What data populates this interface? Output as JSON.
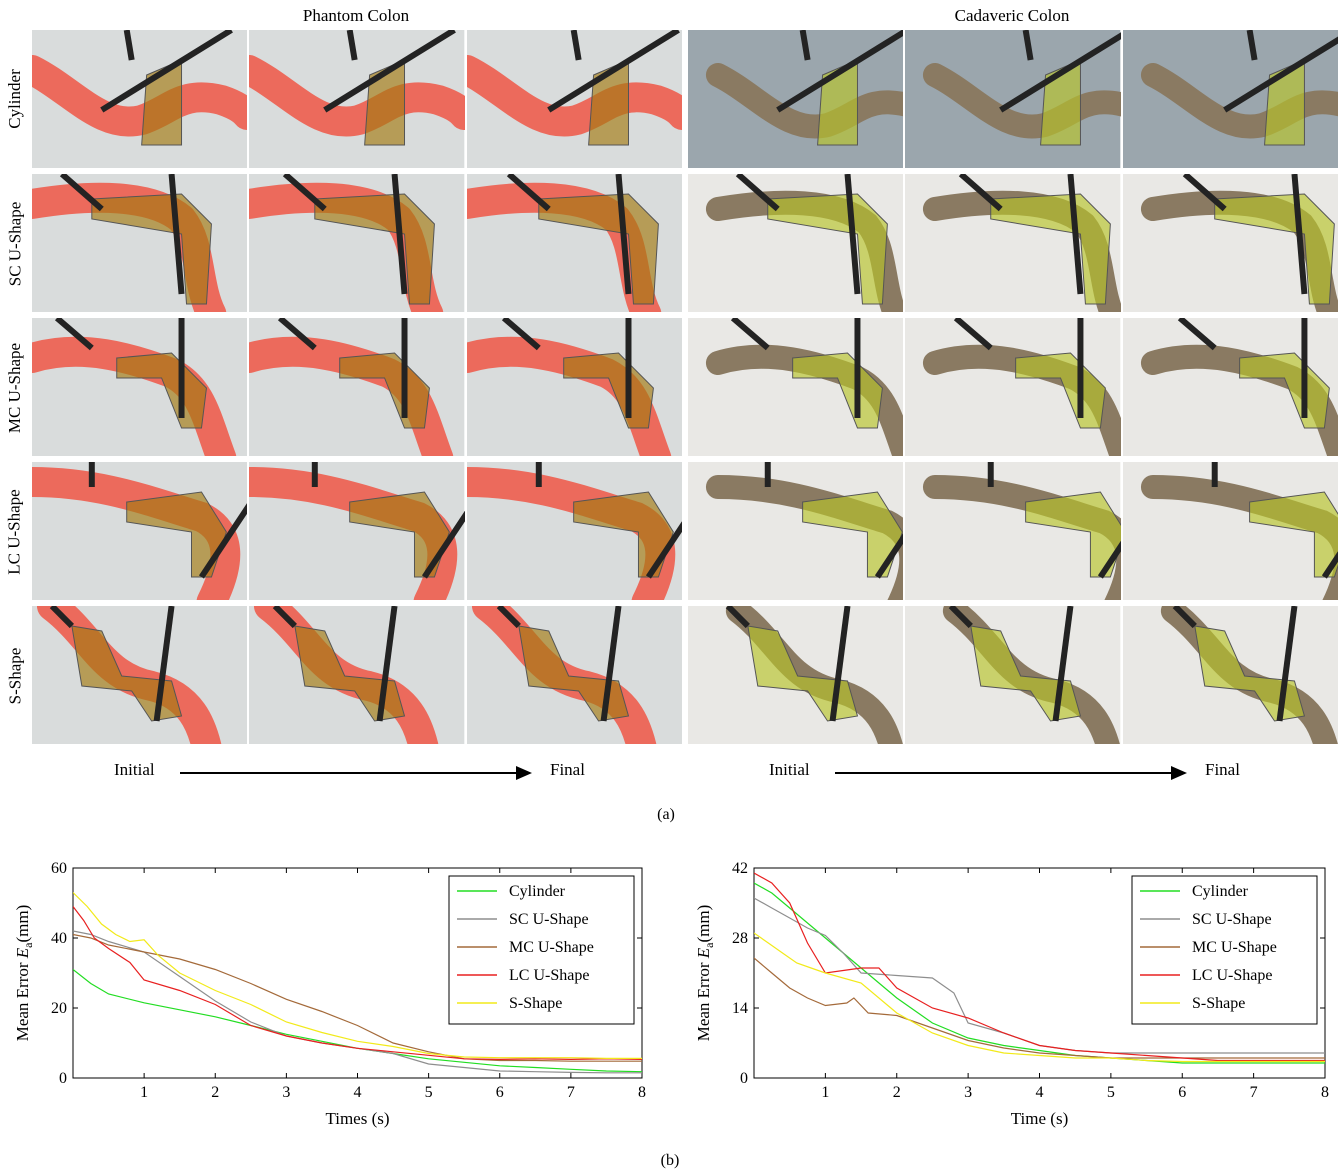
{
  "figure": {
    "panel_a": {
      "left_title": "Phantom Colon",
      "right_title": "Cadaveric Colon",
      "rows": [
        "Cylinder",
        "SC U-Shape",
        "MC U-Shape",
        "LC U-Shape",
        "S-Shape"
      ],
      "sequence": {
        "start": "Initial",
        "end": "Final"
      },
      "caption": "(a)"
    },
    "panel_b": {
      "caption": "(b)"
    }
  },
  "colors": {
    "phantom_bg": "#d9dcdc",
    "phantom_colon": "#ec6a5c",
    "phantom_overlay": "#a37a10",
    "cadaver_bg_row1": "#9ba6ad",
    "cadaver_bg": "#e9e8e5",
    "cadaver_tissue": "#8a7a62",
    "cadaver_overlay": "#b9c42a",
    "instrument": "#232323",
    "cylinder": "#22dd22",
    "sc_u_shape": "#8e8e8e",
    "mc_u_shape": "#a46a3a",
    "lc_u_shape": "#e82020",
    "s_shape": "#f2ea1a"
  },
  "chart_data": [
    {
      "type": "line",
      "title": "",
      "xlabel": "Times (s)",
      "ylabel": "Mean Error E_a(mm)",
      "ylabel_parts": [
        "Mean Error ",
        "E",
        "a",
        "(mm)"
      ],
      "xlim": [
        0,
        8
      ],
      "ylim": [
        0,
        60
      ],
      "xticks": [
        1,
        2,
        3,
        4,
        5,
        6,
        7,
        8
      ],
      "yticks": [
        0,
        20,
        40,
        60
      ],
      "legend_position": "top-right",
      "grid": false,
      "series": [
        {
          "name": "Cylinder",
          "color": "#22dd22",
          "x": [
            0,
            0.25,
            0.5,
            1,
            1.5,
            2,
            2.5,
            3,
            3.5,
            4,
            4.5,
            5,
            5.5,
            6,
            6.5,
            7,
            7.5,
            8
          ],
          "y": [
            31,
            27,
            24,
            21.5,
            19.5,
            17.5,
            15,
            12.5,
            10.5,
            8.5,
            7,
            5.5,
            4.5,
            3.5,
            3,
            2.5,
            2,
            1.8
          ]
        },
        {
          "name": "SC U-Shape",
          "color": "#8e8e8e",
          "x": [
            0,
            0.25,
            0.5,
            1,
            1.5,
            2,
            2.5,
            3,
            3.5,
            4,
            4.5,
            5,
            5.5,
            6,
            6.5,
            7,
            7.5,
            8
          ],
          "y": [
            42,
            41,
            39,
            36,
            29,
            22,
            16,
            12,
            10,
            8.5,
            7,
            4,
            3,
            2,
            1.8,
            1.6,
            1.5,
            1.5
          ]
        },
        {
          "name": "MC U-Shape",
          "color": "#a46a3a",
          "x": [
            0,
            0.25,
            0.5,
            1,
            1.5,
            2,
            2.5,
            3,
            3.5,
            4,
            4.5,
            5,
            5.5,
            6,
            6.5,
            7,
            7.5,
            8
          ],
          "y": [
            41,
            40,
            38,
            36,
            34,
            31,
            27,
            22.5,
            19,
            15,
            10,
            7.5,
            5.5,
            5,
            5,
            4.8,
            4.8,
            4.8
          ]
        },
        {
          "name": "LC U-Shape",
          "color": "#e82020",
          "x": [
            0,
            0.15,
            0.3,
            0.5,
            0.8,
            1,
            1.5,
            2,
            2.5,
            3,
            3.5,
            4,
            4.5,
            5,
            5.5,
            6,
            6.5,
            7,
            7.5,
            8
          ],
          "y": [
            49,
            45,
            40,
            37,
            33,
            28,
            25,
            21,
            15,
            12,
            10,
            8.5,
            7.5,
            6.5,
            5.5,
            5.3,
            5.5,
            5.3,
            5.5,
            5.3
          ]
        },
        {
          "name": "S-Shape",
          "color": "#f2ea1a",
          "x": [
            0,
            0.2,
            0.4,
            0.6,
            0.8,
            1,
            1.2,
            1.5,
            2,
            2.5,
            3,
            3.5,
            4,
            4.5,
            5,
            5.5,
            6,
            6.5,
            7,
            7.5,
            8
          ],
          "y": [
            53,
            49,
            44,
            41,
            39,
            39.5,
            35,
            30,
            25,
            21,
            16,
            13,
            10.5,
            9,
            7,
            6,
            5.8,
            5.8,
            5.8,
            5.6,
            5.6
          ]
        }
      ]
    },
    {
      "type": "line",
      "title": "",
      "xlabel": "Time (s)",
      "ylabel": "Mean Error E_a(mm)",
      "ylabel_parts": [
        "Mean Error ",
        "E",
        "a",
        "(mm)"
      ],
      "xlim": [
        0,
        8
      ],
      "ylim": [
        0,
        42
      ],
      "xticks": [
        1,
        2,
        3,
        4,
        5,
        6,
        7,
        8
      ],
      "yticks": [
        0,
        14,
        28,
        42
      ],
      "legend_position": "top-right",
      "grid": false,
      "series": [
        {
          "name": "Cylinder",
          "color": "#22dd22",
          "x": [
            0,
            0.25,
            0.5,
            0.75,
            1,
            1.5,
            2,
            2.5,
            3,
            3.5,
            4,
            4.5,
            5,
            5.5,
            6,
            6.5,
            7,
            7.5,
            8
          ],
          "y": [
            39,
            37,
            34,
            31,
            28,
            22,
            16,
            11,
            8,
            6.5,
            5.5,
            4.5,
            4,
            3.5,
            3,
            3,
            3,
            3,
            3
          ]
        },
        {
          "name": "SC U-Shape",
          "color": "#8e8e8e",
          "x": [
            0,
            0.25,
            0.5,
            0.75,
            1,
            1.25,
            1.5,
            2,
            2.5,
            2.8,
            3,
            3.5,
            4,
            4.5,
            5,
            5.5,
            6,
            6.5,
            7,
            7.5,
            8
          ],
          "y": [
            36,
            34,
            32,
            30,
            28.5,
            25,
            21,
            20.5,
            20,
            17,
            11,
            9,
            6.5,
            5.5,
            5,
            5,
            5,
            5,
            5,
            5,
            5
          ]
        },
        {
          "name": "MC U-Shape",
          "color": "#a46a3a",
          "x": [
            0,
            0.25,
            0.5,
            0.75,
            1,
            1.3,
            1.4,
            1.6,
            2,
            2.5,
            3,
            3.5,
            4,
            4.5,
            5,
            5.5,
            6,
            6.5,
            7,
            7.5,
            8
          ],
          "y": [
            24,
            21,
            18,
            16,
            14.5,
            15,
            16,
            13,
            12.5,
            10,
            7.5,
            6,
            5,
            4.5,
            4,
            4,
            4,
            4,
            4,
            4,
            4
          ]
        },
        {
          "name": "LC U-Shape",
          "color": "#e82020",
          "x": [
            0,
            0.25,
            0.5,
            0.75,
            1,
            1.25,
            1.5,
            1.75,
            2,
            2.5,
            3,
            3.5,
            4,
            4.5,
            5,
            5.5,
            6,
            6.5,
            7,
            7.5,
            8
          ],
          "y": [
            41,
            39,
            35,
            27,
            21,
            21.5,
            22,
            22,
            18,
            14,
            12,
            9,
            6.5,
            5.5,
            5,
            4.5,
            4,
            3.5,
            3.5,
            3.5,
            3.5
          ]
        },
        {
          "name": "S-Shape",
          "color": "#f2ea1a",
          "x": [
            0,
            0.2,
            0.4,
            0.6,
            0.8,
            1,
            1.5,
            2,
            2.5,
            3,
            3.5,
            4,
            4.5,
            5,
            5.5,
            6,
            6.5,
            7,
            7.5,
            8
          ],
          "y": [
            29,
            27,
            25,
            23,
            22,
            21,
            19,
            13,
            9,
            6.5,
            5,
            4.5,
            4,
            4,
            3.5,
            3.3,
            3.3,
            3.3,
            3.3,
            3.3
          ]
        }
      ]
    }
  ]
}
